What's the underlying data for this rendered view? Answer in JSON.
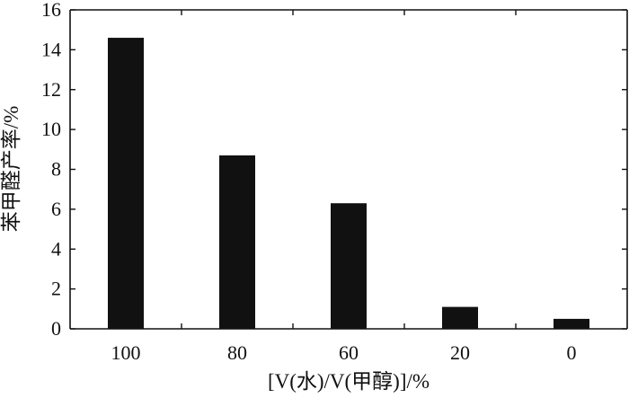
{
  "chart_data": {
    "type": "bar",
    "title": "",
    "xlabel": "[V(水)/V(甲醇)]/%",
    "ylabel": "苯甲醛产率/%",
    "categories": [
      "100",
      "80",
      "60",
      "20",
      "0"
    ],
    "values": [
      14.6,
      8.7,
      6.3,
      1.1,
      0.5
    ],
    "ylim": [
      0,
      16
    ],
    "yticks": [
      0,
      2,
      4,
      6,
      8,
      10,
      12,
      14,
      16
    ],
    "grid": false,
    "legend": "none",
    "bar_color": "#111111"
  }
}
